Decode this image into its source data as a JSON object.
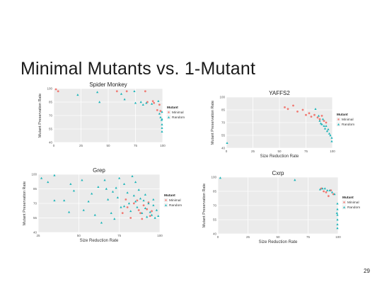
{
  "slide": {
    "title": "Minimal Mutants vs. 1-Mutant",
    "page_number": "29"
  },
  "colors": {
    "minimal": "#f07a73",
    "random": "#19b4b8",
    "panel_bg": "#ebebeb",
    "grid": "#ffffff"
  },
  "chart_data": [
    {
      "type": "scatter",
      "title": "Spider Monkey",
      "xlabel": "",
      "ylabel": "Mutant Preservation Rate",
      "xlim": [
        0,
        100
      ],
      "ylim": [
        40,
        100
      ],
      "xticks": [
        "0",
        "25",
        "50",
        "75",
        "100"
      ],
      "yticks": [
        "40",
        "55",
        "70",
        "85",
        "100"
      ],
      "grid": true,
      "legend": {
        "title": "Mutant",
        "position": "right",
        "entries": [
          "Minimal",
          "Random"
        ]
      },
      "series": [
        {
          "name": "Minimal",
          "points": [
            [
              2,
              100
            ],
            [
              4,
              97
            ],
            [
              58,
              97
            ],
            [
              67,
              97
            ],
            [
              84,
              97
            ],
            [
              86,
              85
            ],
            [
              91,
              86
            ],
            [
              92,
              84
            ],
            [
              95,
              76
            ],
            [
              98,
              75
            ],
            [
              97,
              82
            ]
          ]
        },
        {
          "name": "Random",
          "points": [
            [
              22,
              93
            ],
            [
              40,
              96
            ],
            [
              42,
              85
            ],
            [
              62,
              94
            ],
            [
              65,
              88
            ],
            [
              74,
              97
            ],
            [
              75,
              84
            ],
            [
              80,
              85
            ],
            [
              82,
              82
            ],
            [
              85,
              84
            ],
            [
              90,
              83
            ],
            [
              96,
              86
            ],
            [
              97,
              72
            ],
            [
              98,
              68
            ],
            [
              99,
              65
            ],
            [
              100,
              74
            ],
            [
              100,
              66
            ],
            [
              100,
              60
            ],
            [
              100,
              56
            ],
            [
              100,
              52
            ]
          ]
        }
      ]
    },
    {
      "type": "scatter",
      "title": "YAFFS2",
      "xlabel": "Size Reduction Rate",
      "ylabel": "Mutant Preservation Rate",
      "xlim": [
        0,
        100
      ],
      "ylim": [
        40,
        100
      ],
      "xticks": [
        "0",
        "25",
        "50",
        "75",
        "100"
      ],
      "yticks": [
        "40",
        "55",
        "70",
        "85",
        "100"
      ],
      "grid": true,
      "legend": {
        "title": "Mutant",
        "position": "right",
        "entries": [
          "Minimal",
          "Random"
        ]
      },
      "series": [
        {
          "name": "Minimal",
          "points": [
            [
              55,
              88
            ],
            [
              58,
              86
            ],
            [
              63,
              90
            ],
            [
              67,
              83
            ],
            [
              72,
              85
            ],
            [
              75,
              79
            ],
            [
              78,
              81
            ],
            [
              80,
              77
            ],
            [
              83,
              79
            ],
            [
              86,
              76
            ],
            [
              88,
              74
            ],
            [
              90,
              78
            ],
            [
              92,
              72
            ],
            [
              94,
              70
            ]
          ]
        },
        {
          "name": "Random",
          "points": [
            [
              0,
              46
            ],
            [
              84,
              86
            ],
            [
              87,
              78
            ],
            [
              88,
              72
            ],
            [
              89,
              69
            ],
            [
              90,
              68
            ],
            [
              91,
              74
            ],
            [
              92,
              66
            ],
            [
              93,
              63
            ],
            [
              94,
              66
            ],
            [
              95,
              60
            ],
            [
              96,
              62
            ],
            [
              97,
              57
            ],
            [
              98,
              55
            ],
            [
              100,
              52
            ],
            [
              100,
              48
            ]
          ]
        }
      ]
    },
    {
      "type": "scatter",
      "title": "Grep",
      "xlabel": "Size Reduction Rate",
      "ylabel": "Mutant Preservation Rate",
      "xlim": [
        25,
        100
      ],
      "ylim": [
        40,
        100
      ],
      "xticks": [
        "25",
        "50",
        "75",
        "100"
      ],
      "yticks": [
        "40",
        "55",
        "70",
        "85",
        "100"
      ],
      "grid": true,
      "legend": {
        "title": "Mutant",
        "position": "right",
        "entries": [
          "Minimal",
          "Random"
        ]
      },
      "series": [
        {
          "name": "Minimal",
          "points": [
            [
              79,
              74
            ],
            [
              84,
              70
            ],
            [
              86,
              73
            ],
            [
              90,
              68
            ],
            [
              92,
              64
            ],
            [
              77,
              60
            ],
            [
              80,
              66
            ],
            [
              88,
              60
            ],
            [
              94,
              57
            ],
            [
              82,
              55
            ],
            [
              87,
              63
            ],
            [
              93,
              71
            ],
            [
              95,
              62
            ],
            [
              89,
              54
            ]
          ]
        },
        {
          "name": "Random",
          "points": [
            [
              27,
              96
            ],
            [
              31,
              92
            ],
            [
              35,
              99
            ],
            [
              47,
              83
            ],
            [
              52,
              94
            ],
            [
              58,
              80
            ],
            [
              62,
              87
            ],
            [
              66,
              94
            ],
            [
              68,
              74
            ],
            [
              73,
              86
            ],
            [
              75,
              96
            ],
            [
              76,
              66
            ],
            [
              78,
              90
            ],
            [
              80,
              81
            ],
            [
              81,
              70
            ],
            [
              83,
              98
            ],
            [
              84,
              78
            ],
            [
              85,
              92
            ],
            [
              86,
              66
            ],
            [
              87,
              84
            ],
            [
              88,
              75
            ],
            [
              89,
              60
            ],
            [
              90,
              73
            ],
            [
              91,
              65
            ],
            [
              92,
              56
            ],
            [
              93,
              70
            ],
            [
              94,
              61
            ],
            [
              95,
              58
            ],
            [
              96,
              68
            ],
            [
              97,
              55
            ],
            [
              72,
              54
            ],
            [
              64,
              50
            ],
            [
              53,
              63
            ],
            [
              44,
              61
            ],
            [
              41,
              73
            ],
            [
              56,
              72
            ],
            [
              70,
              60
            ],
            [
              60,
              58
            ],
            [
              74,
              76
            ],
            [
              78,
              67
            ],
            [
              85,
              72
            ],
            [
              91,
              79
            ],
            [
              96,
              74
            ],
            [
              98,
              63
            ],
            [
              99,
              57
            ],
            [
              82,
              62
            ],
            [
              67,
              85
            ],
            [
              71,
              82
            ],
            [
              45,
              90
            ],
            [
              35,
              73
            ]
          ]
        }
      ]
    },
    {
      "type": "scatter",
      "title": "Cxrp",
      "xlabel": "Size Reduction Rate",
      "ylabel": "Mutant Preservation Rate",
      "xlim": [
        0,
        100
      ],
      "ylim": [
        40,
        100
      ],
      "xticks": [
        "0",
        "25",
        "50",
        "75",
        "100"
      ],
      "yticks": [
        "40",
        "55",
        "70",
        "85",
        "100"
      ],
      "grid": true,
      "legend": {
        "title": "Mutant",
        "position": "right",
        "entries": [
          "Minimal",
          "Random"
        ]
      },
      "series": [
        {
          "name": "Minimal",
          "points": [
            [
              86,
              88
            ],
            [
              88,
              85
            ],
            [
              90,
              84
            ],
            [
              94,
              86
            ],
            [
              96,
              82
            ],
            [
              92,
              80
            ]
          ]
        },
        {
          "name": "Random",
          "points": [
            [
              2,
              100
            ],
            [
              64,
              97
            ],
            [
              85,
              87
            ],
            [
              87,
              88
            ],
            [
              89,
              88
            ],
            [
              91,
              86
            ],
            [
              93,
              86
            ],
            [
              95,
              84
            ],
            [
              97,
              82
            ],
            [
              100,
              72
            ],
            [
              100,
              66
            ],
            [
              100,
              60
            ],
            [
              100,
              55
            ],
            [
              100,
              50
            ],
            [
              100,
              46
            ],
            [
              99,
              62
            ]
          ]
        }
      ]
    }
  ]
}
